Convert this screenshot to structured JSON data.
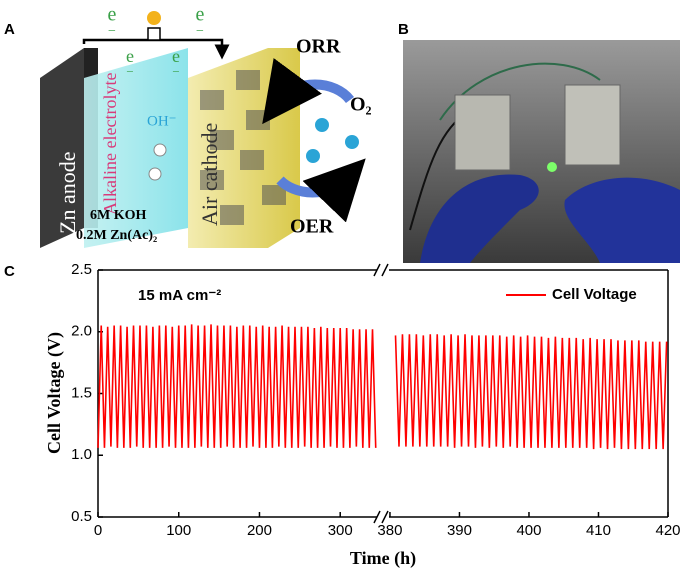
{
  "panel_labels": [
    "A",
    "B",
    "C"
  ],
  "diagram": {
    "electron": {
      "symbol": "e",
      "charge": "−"
    },
    "zn_anode": "Zn anode",
    "electrolyte": "Alkaline electrolyte",
    "hydroxide": "OH⁻",
    "air_cathode": "Air cathode",
    "koh": "6M KOH",
    "zinc_acetate": "0.2M Zn(Ac)₂",
    "orr": "ORR",
    "oer": "OER",
    "oxygen": "O₂"
  },
  "chart_data": {
    "type": "line",
    "annotation": "15 mA cm⁻²",
    "xlabel": "Time (h)",
    "ylabel": "Cell Voltage (V)",
    "ylim": [
      0.5,
      2.5
    ],
    "yticks": [
      0.5,
      {
        "value": 1,
        "label": "1.0"
      },
      1.5,
      {
        "value": 2,
        "label": "2.0"
      },
      2.5
    ],
    "x_segments": [
      {
        "xlim": [
          0,
          353
        ],
        "xticks": [
          0,
          100,
          200,
          300
        ]
      },
      {
        "xlim": [
          379,
          420
        ],
        "xticks": [
          380,
          390,
          400,
          410,
          420
        ]
      }
    ],
    "legend": "upper right",
    "series": [
      {
        "name": "Cell Voltage",
        "color": "#ff0000",
        "x": [
          0,
          4,
          8,
          12,
          16,
          20,
          24,
          28,
          32,
          36,
          40,
          44,
          48,
          52,
          56,
          60,
          64,
          68,
          72,
          76,
          80,
          84,
          88,
          92,
          96,
          100,
          104,
          108,
          112,
          116,
          120,
          124,
          128,
          132,
          136,
          140,
          144,
          148,
          152,
          156,
          160,
          164,
          168,
          172,
          176,
          180,
          184,
          188,
          192,
          196,
          200,
          204,
          208,
          212,
          216,
          220,
          224,
          228,
          232,
          236,
          240,
          244,
          248,
          252,
          256,
          260,
          264,
          268,
          272,
          276,
          280,
          284,
          288,
          292,
          296,
          300,
          304,
          308,
          312,
          316,
          320,
          324,
          328,
          332,
          336,
          340,
          344,
          380.8,
          381.3,
          381.8,
          382.3,
          382.8,
          383.3,
          383.8,
          384.3,
          384.8,
          385.3,
          385.8,
          386.3,
          386.8,
          387.3,
          387.8,
          388.3,
          388.8,
          389.3,
          389.8,
          390.3,
          390.8,
          391.3,
          391.8,
          392.3,
          392.8,
          393.3,
          393.8,
          394.3,
          394.8,
          395.3,
          395.8,
          396.3,
          396.8,
          397.3,
          397.8,
          398.3,
          398.8,
          399.3,
          399.8,
          400.3,
          400.8,
          401.3,
          401.8,
          402.3,
          402.8,
          403.3,
          403.8,
          404.3,
          404.8,
          405.3,
          405.8,
          406.3,
          406.8,
          407.3,
          407.8,
          408.3,
          408.8,
          409.3,
          409.8,
          410.3,
          410.8,
          411.3,
          411.8,
          412.3,
          412.8,
          413.3,
          413.8,
          414.3,
          414.8,
          415.3,
          415.8,
          416.3,
          416.8,
          417.3,
          417.8,
          418.3,
          418.8,
          419.3,
          419.8
        ],
        "values": [
          1.06,
          2.05,
          1.06,
          2.04,
          1.07,
          2.05,
          1.06,
          2.05,
          1.06,
          2.04,
          1.06,
          2.05,
          1.07,
          2.05,
          1.06,
          2.05,
          1.06,
          2.04,
          1.06,
          2.05,
          1.06,
          2.05,
          1.07,
          2.04,
          1.06,
          2.05,
          1.06,
          2.05,
          1.06,
          2.06,
          1.06,
          2.05,
          1.07,
          2.05,
          1.06,
          2.06,
          1.06,
          2.05,
          1.06,
          2.05,
          1.07,
          2.05,
          1.06,
          2.04,
          1.06,
          2.05,
          1.06,
          2.05,
          1.07,
          2.04,
          1.06,
          2.05,
          1.06,
          2.04,
          1.06,
          2.04,
          1.07,
          2.05,
          1.06,
          2.04,
          1.06,
          2.04,
          1.06,
          2.04,
          1.07,
          2.04,
          1.06,
          2.03,
          1.06,
          2.04,
          1.06,
          2.03,
          1.07,
          2.03,
          1.06,
          2.03,
          1.06,
          2.03,
          1.06,
          2.02,
          1.07,
          2.02,
          1.06,
          2.02,
          1.06,
          2.02,
          1.06,
          1.97,
          1.07,
          1.98,
          1.07,
          1.98,
          1.07,
          1.98,
          1.07,
          1.97,
          1.07,
          1.98,
          1.07,
          1.98,
          1.07,
          1.97,
          1.07,
          1.98,
          1.06,
          1.97,
          1.07,
          1.98,
          1.07,
          1.97,
          1.06,
          1.97,
          1.07,
          1.97,
          1.06,
          1.97,
          1.07,
          1.97,
          1.06,
          1.96,
          1.07,
          1.97,
          1.06,
          1.96,
          1.06,
          1.97,
          1.06,
          1.96,
          1.06,
          1.96,
          1.06,
          1.95,
          1.06,
          1.96,
          1.06,
          1.95,
          1.06,
          1.95,
          1.06,
          1.95,
          1.06,
          1.94,
          1.06,
          1.95,
          1.05,
          1.94,
          1.06,
          1.94,
          1.05,
          1.94,
          1.06,
          1.93,
          1.05,
          1.93,
          1.05,
          1.93,
          1.05,
          1.93,
          1.05,
          1.92,
          1.05,
          1.92,
          1.05,
          1.92,
          1.05,
          1.92
        ]
      }
    ]
  }
}
